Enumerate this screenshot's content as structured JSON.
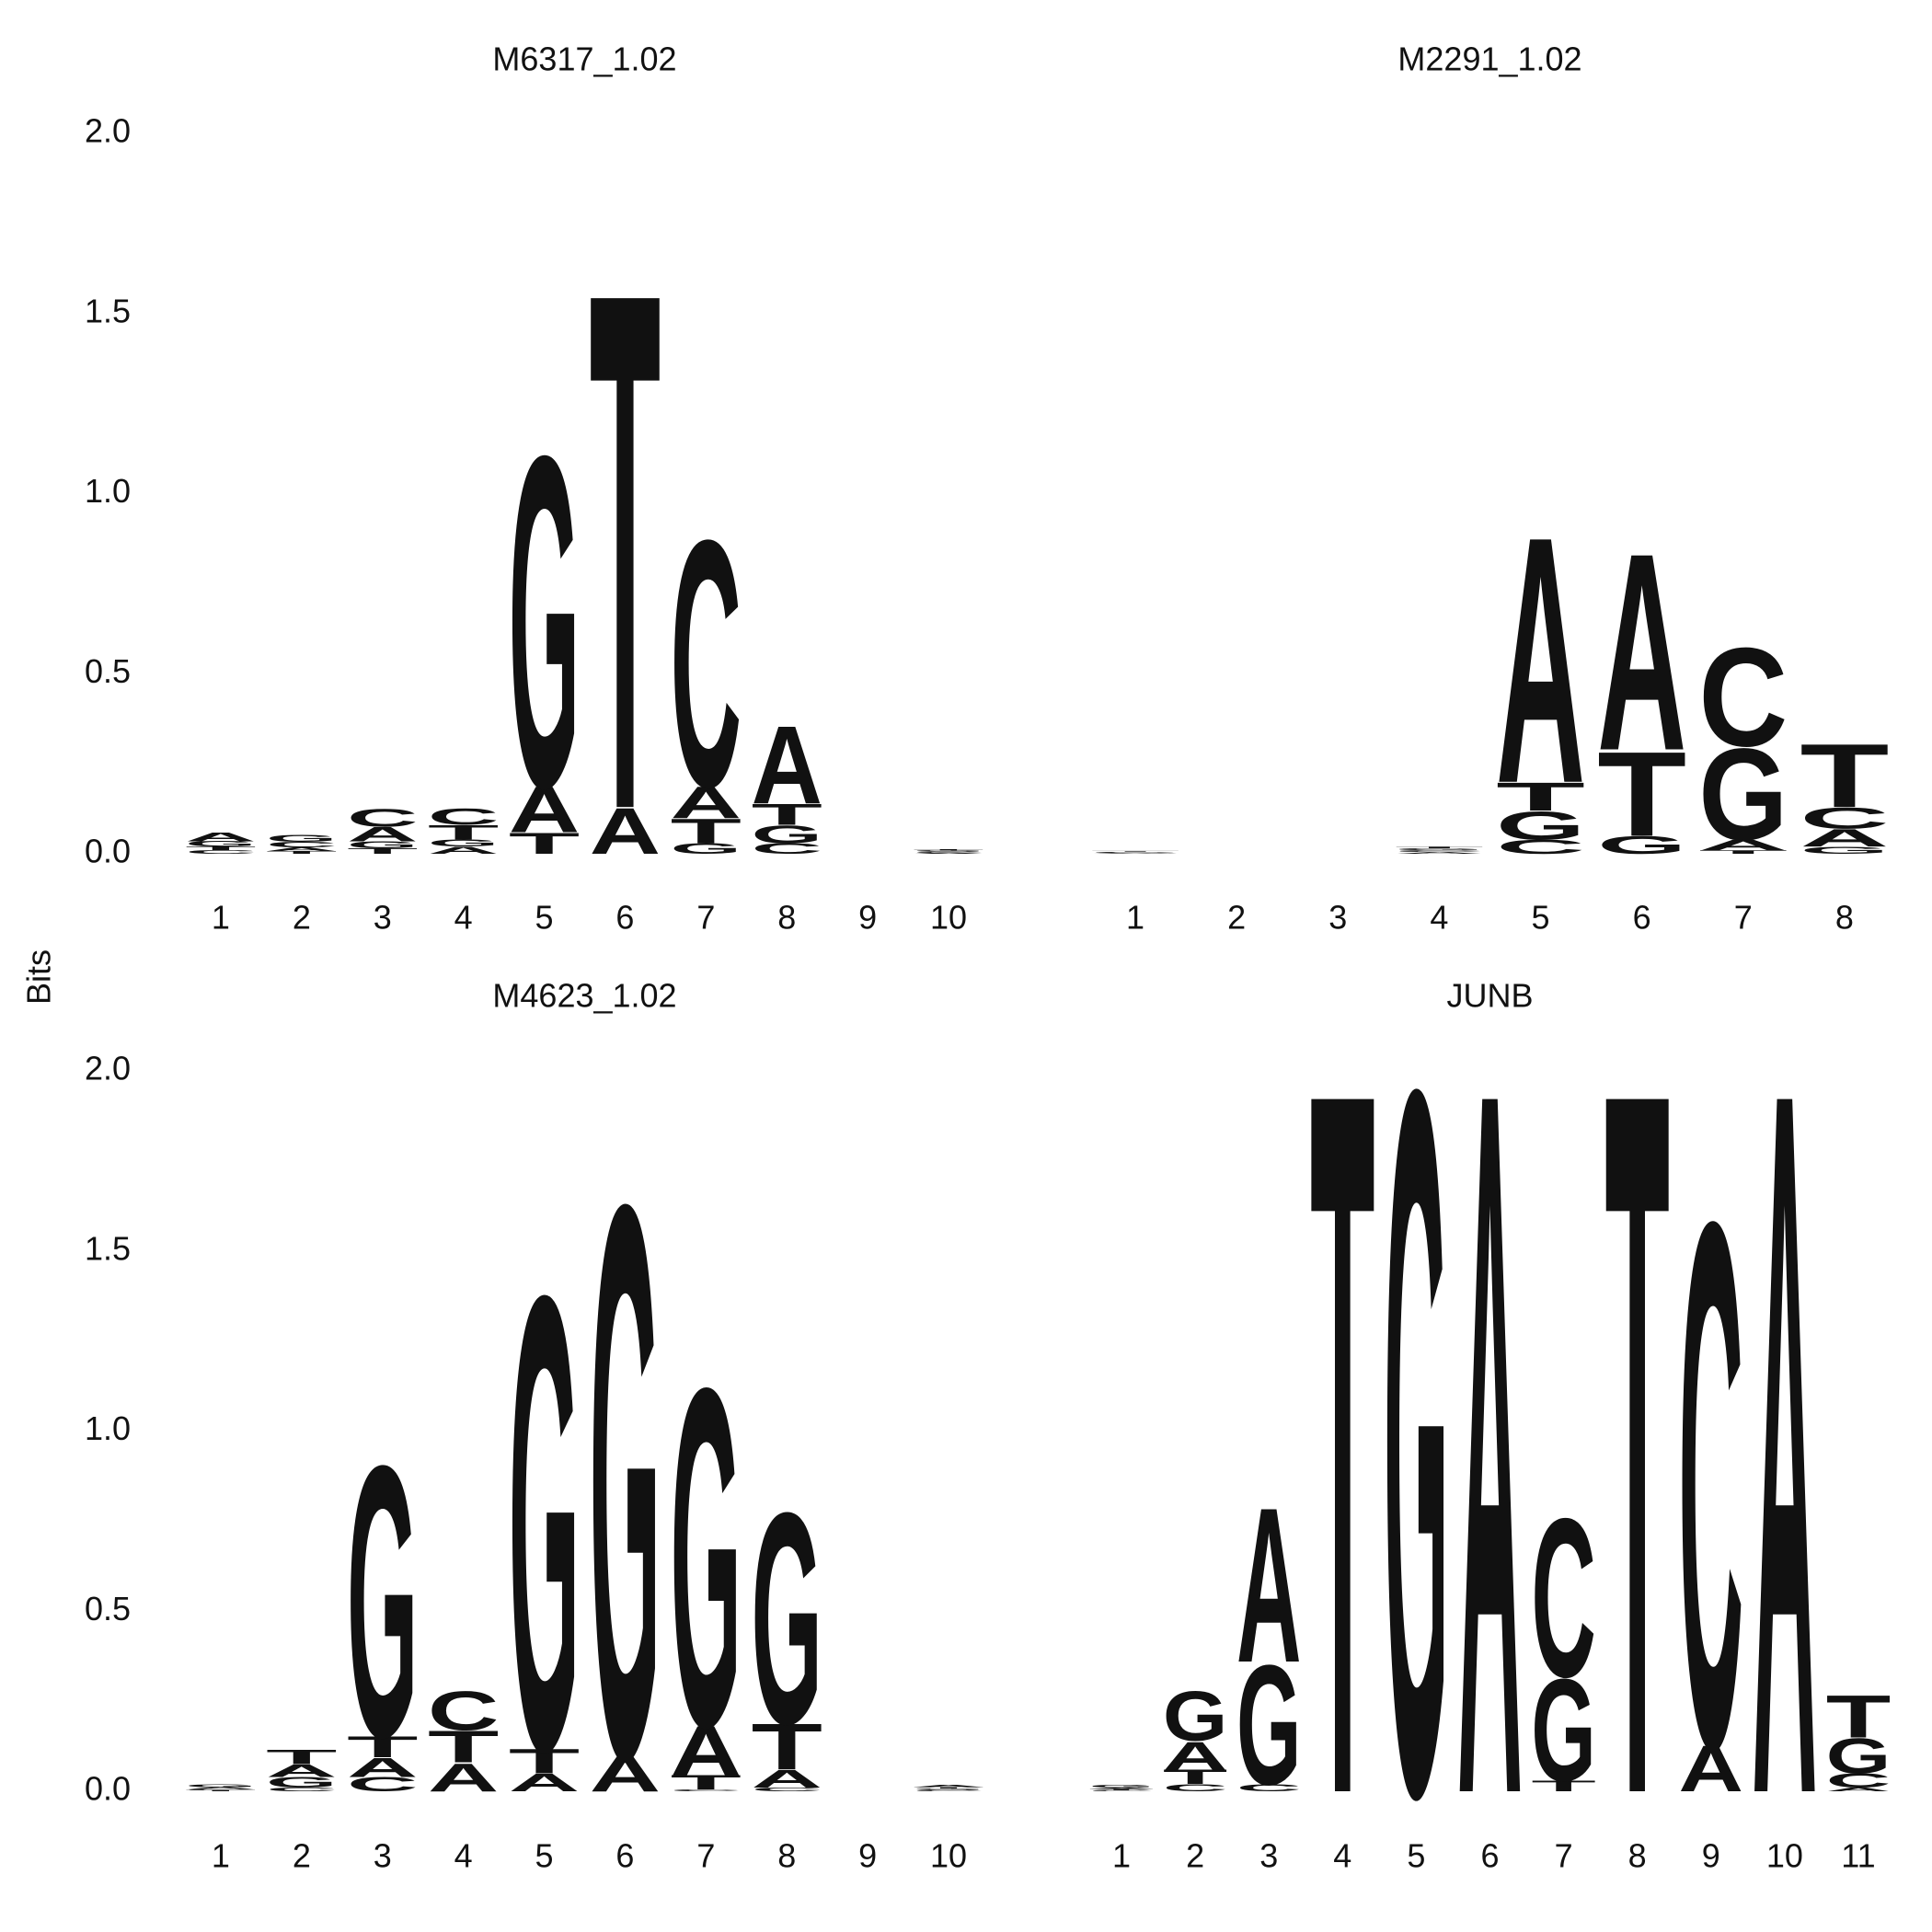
{
  "ylabel": "Bits",
  "chart_data": [
    {
      "type": "logo",
      "title": "M6317_1.02",
      "categories": [
        "1",
        "2",
        "3",
        "4",
        "5",
        "6",
        "7",
        "8",
        "9",
        "10"
      ],
      "ylim": [
        0,
        2
      ],
      "yticks": [
        {
          "value": 0,
          "label": "0.0"
        },
        0.5,
        {
          "value": 1,
          "label": "1.0"
        },
        1.5,
        {
          "value": 2,
          "label": "2.0"
        }
      ],
      "series": [
        {
          "name": "A",
          "color": "#109648",
          "values": [
            0.025,
            0.01,
            0.04,
            0.02,
            0.13,
            0.13,
            0.09,
            0.22,
            0,
            0.003
          ]
        },
        {
          "name": "C",
          "color": "#255C99",
          "values": [
            0.01,
            0.015,
            0.05,
            0.045,
            0,
            0,
            0.7,
            0.03,
            0,
            0.003
          ]
        },
        {
          "name": "G",
          "color": "#F7B32B",
          "values": [
            0.015,
            0.02,
            0.02,
            0.02,
            0.94,
            0,
            0.03,
            0.05,
            0,
            0.003
          ]
        },
        {
          "name": "T",
          "color": "#D62839",
          "values": [
            0.01,
            0.008,
            0.015,
            0.04,
            0.06,
            1.47,
            0.07,
            0.06,
            0,
            0.003
          ]
        }
      ]
    },
    {
      "type": "logo",
      "title": "M2291_1.02",
      "categories": [
        "1",
        "2",
        "3",
        "4",
        "5",
        "6",
        "7",
        "8"
      ],
      "ylim": [
        0,
        2
      ],
      "series": [
        {
          "name": "A",
          "color": "#109648",
          "values": [
            0.002,
            0,
            0,
            0.005,
            0.7,
            0.56,
            0.03,
            0.05
          ]
        },
        {
          "name": "C",
          "color": "#255C99",
          "values": [
            0.002,
            0,
            0,
            0.005,
            0.04,
            0,
            0.28,
            0.06
          ]
        },
        {
          "name": "G",
          "color": "#F7B32B",
          "values": [
            0.002,
            0,
            0,
            0.005,
            0.08,
            0.05,
            0.26,
            0.02
          ]
        },
        {
          "name": "T",
          "color": "#D62839",
          "values": [
            0.002,
            0,
            0,
            0.005,
            0.08,
            0.24,
            0.01,
            0.18
          ]
        }
      ]
    },
    {
      "type": "logo",
      "title": "M4623_1.02",
      "categories": [
        "1",
        "2",
        "3",
        "4",
        "5",
        "6",
        "7",
        "8",
        "9",
        "10"
      ],
      "ylim": [
        0,
        2
      ],
      "yticks": [
        {
          "value": 0,
          "label": "0.0"
        },
        0.5,
        {
          "value": 1,
          "label": "1.0"
        },
        1.5,
        {
          "value": 2,
          "label": "2.0"
        }
      ],
      "series": [
        {
          "name": "A",
          "color": "#109648",
          "values": [
            0.005,
            0.035,
            0.055,
            0.08,
            0.05,
            0.1,
            0.14,
            0.05,
            0,
            0.006
          ]
        },
        {
          "name": "C",
          "color": "#255C99",
          "values": [
            0.004,
            0.01,
            0.04,
            0.11,
            0,
            0,
            0.005,
            0.01,
            0,
            0.004
          ]
        },
        {
          "name": "G",
          "color": "#F7B32B",
          "values": [
            0.008,
            0.03,
            0.77,
            0,
            1.29,
            1.57,
            0.96,
            0.6,
            0,
            0.004
          ]
        },
        {
          "name": "T",
          "color": "#D62839",
          "values": [
            0.003,
            0.04,
            0.06,
            0.09,
            0.07,
            0,
            0.04,
            0.13,
            0,
            0.004
          ]
        }
      ]
    },
    {
      "type": "logo",
      "title": "JUNB",
      "categories": [
        "1",
        "2",
        "3",
        "4",
        "5",
        "6",
        "7",
        "8",
        "9",
        "10",
        "11"
      ],
      "ylim": [
        0,
        2
      ],
      "series": [
        {
          "name": "A",
          "color": "#109648",
          "values": [
            0.004,
            0.08,
            0.44,
            0,
            0,
            2,
            0,
            0,
            0.13,
            2,
            0.01
          ]
        },
        {
          "name": "C",
          "color": "#255C99",
          "values": [
            0.003,
            0.02,
            0.02,
            0,
            0,
            0,
            0.45,
            0,
            1.49,
            0,
            0.04
          ]
        },
        {
          "name": "G",
          "color": "#F7B32B",
          "values": [
            0.008,
            0.14,
            0.34,
            0,
            2,
            0,
            0.29,
            0,
            0,
            0,
            0.1
          ]
        },
        {
          "name": "T",
          "color": "#D62839",
          "values": [
            0.003,
            0.04,
            0,
            2,
            0,
            0,
            0.03,
            2,
            0,
            0,
            0.12
          ]
        }
      ]
    }
  ]
}
